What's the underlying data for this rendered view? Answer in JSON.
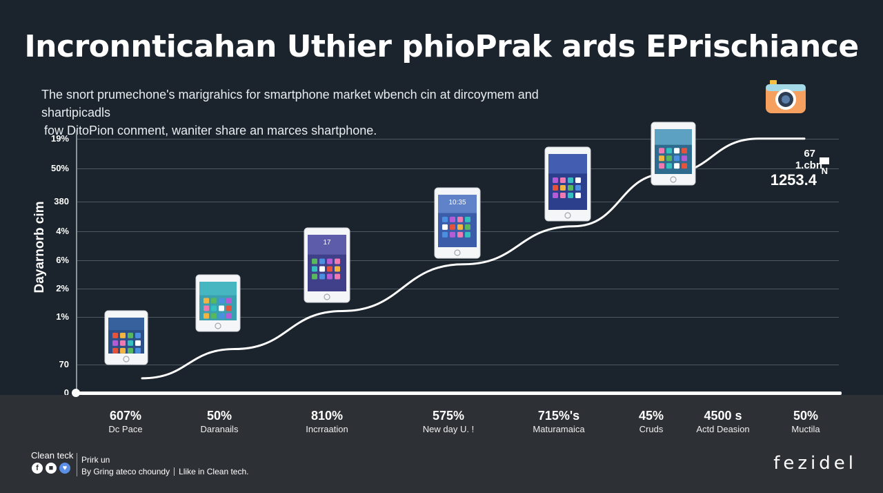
{
  "title": "Incronnticahan Uthier phioPrak ards EPrischiance",
  "subtitle": {
    "line1": "The snort prumechone's marigrahics for smartphone market wbench cin at dircoymem and shartipicadls",
    "line2": "fow DitoPion conment, waniter share an marces  shartphone."
  },
  "colors": {
    "background": "#1b242c",
    "band": "#2d3135",
    "line": "#ffffff",
    "accent_blue": "#5b8fe6",
    "camera_orange": "#f6a05f"
  },
  "chart_data": {
    "type": "line",
    "title": "Incronnticahan Uthier phioPrak ards EPrischiance",
    "ylabel": "Dayarnorb cim",
    "xlabel": "",
    "grid": true,
    "ytick_labels": [
      "19%",
      "50%",
      "380",
      "4%",
      "6%",
      "2%",
      "1%",
      "70",
      "0"
    ],
    "categories": [
      {
        "value_label": "607%",
        "name": "Dc Pace"
      },
      {
        "value_label": "50%",
        "name": "Daranails"
      },
      {
        "value_label": "810%",
        "name": "Incrraation"
      },
      {
        "value_label": "575%",
        "name": "New day U. !"
      },
      {
        "value_label": "715%'s",
        "name": "Maturamaica"
      },
      {
        "value_label": "45%",
        "name": "Cruds"
      },
      {
        "value_label": "4500 s",
        "name": "Actd Deasion"
      },
      {
        "value_label": "50%",
        "name": "Muctila"
      }
    ],
    "series": [
      {
        "values": [
          0.5,
          1.5,
          2.8,
          4.4,
          5.7,
          7.5,
          8.7,
          8.7
        ]
      }
    ],
    "phone_markers": [
      0,
      1,
      2,
      3,
      4,
      5
    ],
    "phone_screen_text": [
      "",
      "",
      "17",
      "10:35",
      "",
      ""
    ],
    "end_readout": {
      "line1": "67",
      "line2": "1.cbn",
      "line3": "1253.4",
      "suffix": "N"
    }
  },
  "icons": {
    "camera": "camera-icon",
    "facebook": "facebook-icon",
    "message": "message-icon",
    "heart": "heart-icon"
  },
  "footer": {
    "brand": "Clean teck",
    "heading": "Prirk un",
    "line_left": "By Gring ateco choundy",
    "line_right": "Llike in Clean tech.",
    "logo": "fezidel"
  }
}
